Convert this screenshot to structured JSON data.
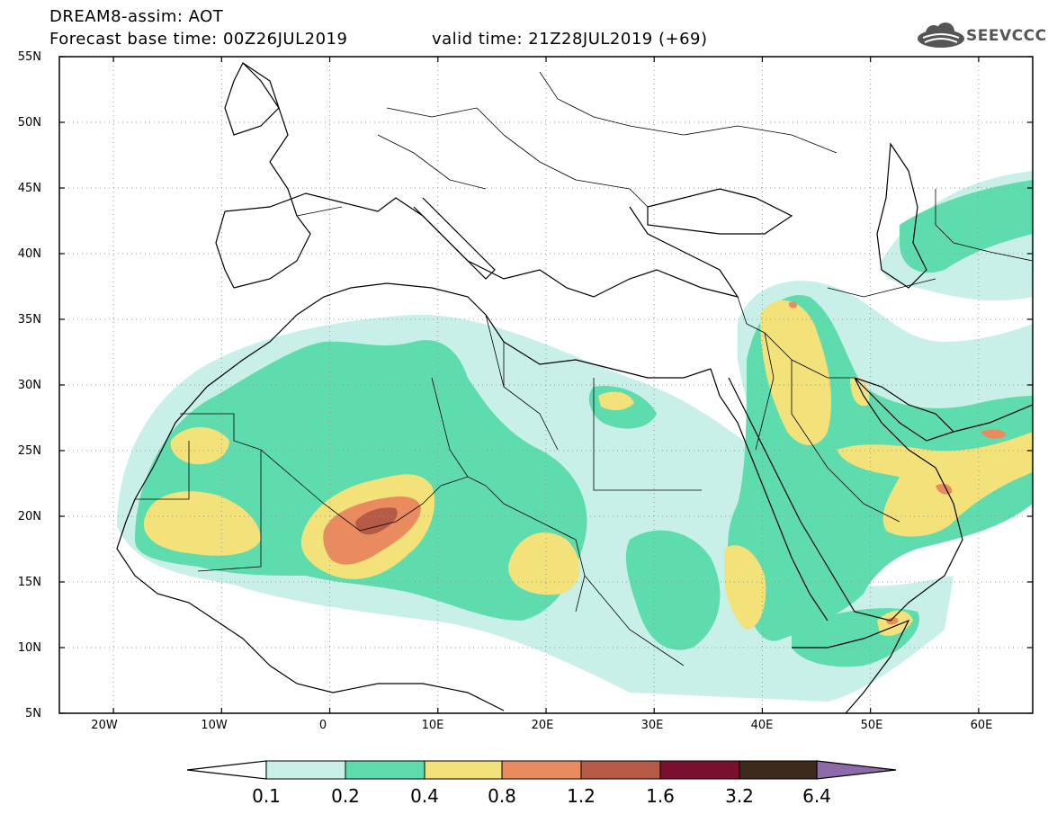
{
  "header": {
    "title_line1": "DREAM8-assim: AOT",
    "base_time": "Forecast base time: 00Z26JUL2019",
    "valid_time": "valid time: 21Z28JUL2019 (+69)",
    "logo_text": "SEEVCCC",
    "logo_icon": "cloud-logo-icon"
  },
  "axes": {
    "lat_labels": [
      "55N",
      "50N",
      "45N",
      "40N",
      "35N",
      "30N",
      "25N",
      "20N",
      "15N",
      "10N",
      "5N"
    ],
    "lon_labels": [
      "20W",
      "10W",
      "0",
      "10E",
      "20E",
      "30E",
      "40E",
      "50E",
      "60E"
    ]
  },
  "colorbar": {
    "labels": [
      "0.1",
      "0.2",
      "0.4",
      "0.8",
      "1.2",
      "1.6",
      "3.2",
      "6.4"
    ],
    "colors": [
      "#ffffff",
      "#c8efe8",
      "#5fdcae",
      "#f3e17a",
      "#e98b5e",
      "#b55a47",
      "#7a0f2e",
      "#3e2a1a",
      "#8e6aaa"
    ]
  },
  "colors": {
    "c01": "#c8efe8",
    "c02": "#5fdcae",
    "c04": "#f3e17a",
    "c08": "#e98b5e",
    "c12": "#b55a47"
  }
}
